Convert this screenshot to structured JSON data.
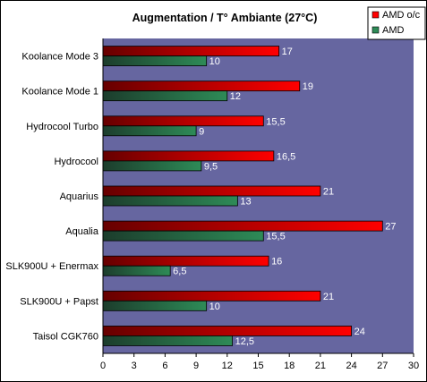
{
  "chart_data": {
    "type": "bar",
    "orientation": "horizontal",
    "title": "Augmentation / T° Ambiante (27°C)",
    "categories": [
      "Koolance Mode 3",
      "Koolance Mode 1",
      "Hydrocool Turbo",
      "Hydrocool",
      "Aquarius",
      "Aqualia",
      "SLK900U + Enermax",
      "SLK900U + Papst",
      "Taisol CGK760"
    ],
    "series": [
      {
        "name": "AMD o/c",
        "color": "#ff0000",
        "values": [
          17,
          19,
          15.5,
          16.5,
          21,
          27,
          16,
          21,
          24
        ],
        "labels": [
          "17",
          "19",
          "15,5",
          "16,5",
          "21",
          "27",
          "16",
          "21",
          "24"
        ]
      },
      {
        "name": "AMD",
        "color": "#2e8b57",
        "values": [
          10,
          12,
          9,
          9.5,
          13,
          15.5,
          6.5,
          10,
          12.5
        ],
        "labels": [
          "10",
          "12",
          "9",
          "9,5",
          "13",
          "15,5",
          "6,5",
          "10",
          "12,5"
        ]
      }
    ],
    "xlim": [
      0,
      30
    ],
    "xticks": [
      "0",
      "3",
      "6",
      "9",
      "12",
      "15",
      "18",
      "21",
      "24",
      "27",
      "30"
    ],
    "plot_background": "#6666a0",
    "grid": false,
    "legend_position": "top-right"
  }
}
